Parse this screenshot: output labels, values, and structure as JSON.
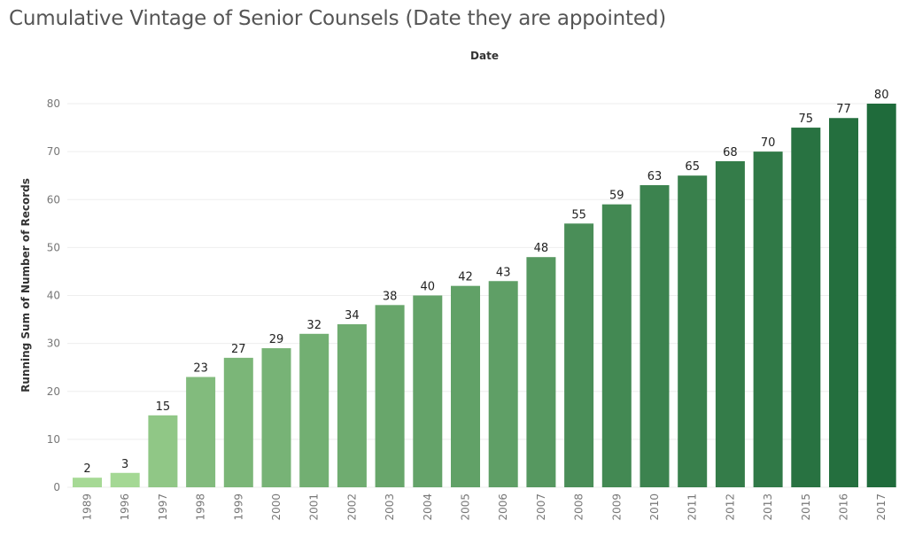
{
  "page": {
    "title": "Cumulative Vintage of Senior Counsels (Date they are appointed)"
  },
  "chart_data": {
    "type": "bar",
    "title": "Cumulative Vintage of Senior Counsels (Date they are appointed)",
    "xlabel": "Date",
    "ylabel": "Running Sum of Number of Records",
    "categories": [
      "1989",
      "1996",
      "1997",
      "1998",
      "1999",
      "2000",
      "2001",
      "2002",
      "2003",
      "2004",
      "2005",
      "2006",
      "2007",
      "2008",
      "2009",
      "2010",
      "2011",
      "2012",
      "2013",
      "2015",
      "2016",
      "2017"
    ],
    "values": [
      2,
      3,
      15,
      23,
      27,
      29,
      32,
      34,
      38,
      40,
      42,
      43,
      48,
      55,
      59,
      63,
      65,
      68,
      70,
      75,
      77,
      80
    ],
    "ylim": [
      0,
      80
    ],
    "yticks": [
      0,
      10,
      20,
      30,
      40,
      50,
      60,
      70,
      80
    ],
    "grid": true,
    "color_light": "#a6d995",
    "color_dark": "#1f6b3b"
  }
}
